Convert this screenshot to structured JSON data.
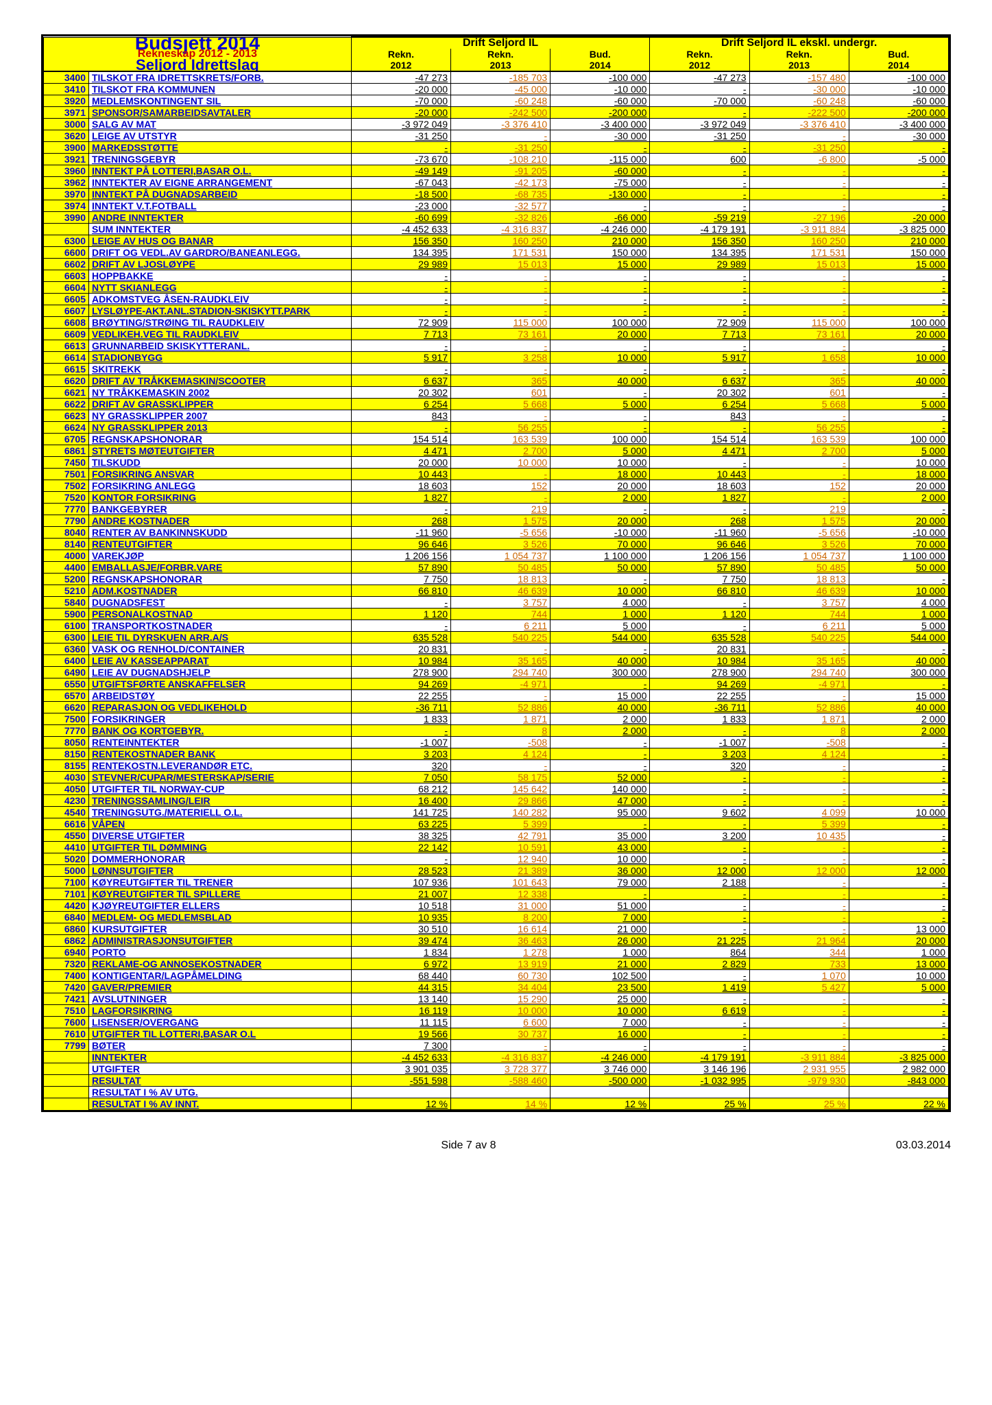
{
  "title": "Budsjett 2014",
  "subtitle": "Rekneskap 2012 - 2013",
  "org": "Seljord Idrettslag",
  "groups": [
    {
      "label": "Drift Seljord IL",
      "cols": [
        {
          "k": "a",
          "label": "Rekn.",
          "year": "2012"
        },
        {
          "k": "b",
          "label": "Rekn.",
          "year": "2013"
        },
        {
          "k": "c",
          "label": "Bud.",
          "year": "2014"
        }
      ]
    },
    {
      "label": "Drift Seljord IL ekskl. undergr.",
      "cols": [
        {
          "k": "d",
          "label": "Rekn.",
          "year": "2012"
        },
        {
          "k": "e",
          "label": "Rekn.",
          "year": "2013"
        },
        {
          "k": "f",
          "label": "Bud.",
          "year": "2014"
        }
      ]
    }
  ],
  "rows": [
    {
      "code": "3400",
      "desc": "TILSKOT FRA IDRETTSKRETS/FORB.",
      "a": "-47 273",
      "b": "-185 703",
      "c": "-100 000",
      "d": "-47 273",
      "e": "-157 480",
      "f": "-100 000"
    },
    {
      "code": "3410",
      "desc": "TILSKOT FRA KOMMUNEN",
      "a": "-20 000",
      "b": "-45 000",
      "c": "-10 000",
      "d": "-",
      "e": "-30 000",
      "f": "-10 000"
    },
    {
      "code": "3920",
      "desc": "MEDLEMSKONTINGENT SIL",
      "a": "-70 000",
      "b": "-60 248",
      "c": "-60 000",
      "d": "-70 000",
      "e": "-60 248",
      "f": "-60 000"
    },
    {
      "code": "3971",
      "desc": "SPONSOR/SAMARBEIDSAVTALER",
      "a": "-20 000",
      "b": "-242 500",
      "c": "-200 000",
      "d": "-",
      "e": "-222 500",
      "f": "-200 000",
      "hl": true
    },
    {
      "code": "3000",
      "desc": "SALG AV MAT",
      "a": "-3 972 049",
      "b": "-3 376 410",
      "c": "-3 400 000",
      "d": "-3 972 049",
      "e": "-3 376 410",
      "f": "-3 400 000"
    },
    {
      "code": "3620",
      "desc": "LEIGE AV UTSTYR",
      "a": "-31 250",
      "b": "-",
      "c": "-30 000",
      "d": "-31 250",
      "e": "-",
      "f": "-30 000"
    },
    {
      "code": "3900",
      "desc": "MARKEDSSTØTTE",
      "a": "-",
      "b": "-31 250",
      "c": "-",
      "d": "-",
      "e": "-31 250",
      "f": "-",
      "hl": true
    },
    {
      "code": "3921",
      "desc": "TRENINGSGEBYR",
      "a": "-73 670",
      "b": "-108 210",
      "c": "-115 000",
      "d": "600",
      "e": "-6 800",
      "f": "-5 000"
    },
    {
      "code": "3960",
      "desc": "INNTEKT PÅ LOTTERI,BASAR O.L.",
      "a": "-49 149",
      "b": "-91 205",
      "c": "-60 000",
      "d": "-",
      "e": "-",
      "f": "-",
      "hl": true
    },
    {
      "code": "3962",
      "desc": "INNTEKTER AV EIGNE ARRANGEMENT",
      "a": "-67 043",
      "b": "-42 173",
      "c": "-75 000",
      "d": "-",
      "e": "-",
      "f": "-"
    },
    {
      "code": "3970",
      "desc": "INNTEKT PÅ DUGNADSARBEID",
      "a": "-18 500",
      "b": "-68 735",
      "c": "-130 000",
      "d": "-",
      "e": "-",
      "f": "-",
      "hl": true
    },
    {
      "code": "3974",
      "desc": "INNTEKT V.T.FOTBALL",
      "a": "-23 000",
      "b": "-32 577",
      "c": "-",
      "d": "-",
      "e": "-",
      "f": "-"
    },
    {
      "code": "3990",
      "desc": "ANDRE INNTEKTER",
      "a": "-60 699",
      "b": "-32 826",
      "c": "-66 000",
      "d": "-59 219",
      "e": "-27 196",
      "f": "-20 000",
      "hl": true
    },
    {
      "code": "",
      "desc": "SUM INNTEKTER",
      "a": "-4 452 633",
      "b": "-4 316 837",
      "c": "-4 246 000",
      "d": "-4 179 191",
      "e": "-3 911 884",
      "f": "-3 825 000"
    },
    {
      "code": "6300",
      "desc": "LEIGE AV HUS OG BANAR",
      "a": "156 350",
      "b": "160 250",
      "c": "210 000",
      "d": "156 350",
      "e": "160 250",
      "f": "210 000",
      "hl": true
    },
    {
      "code": "6600",
      "desc": "DRIFT OG VEDL.AV GARDRO/BANEANLEGG.",
      "a": "134 395",
      "b": "171 531",
      "c": "150 000",
      "d": "134 395",
      "e": "171 531",
      "f": "150 000"
    },
    {
      "code": "6602",
      "desc": "DRIFT AV LJOSLØYPE",
      "a": "29 989",
      "b": "15 013",
      "c": "15 000",
      "d": "29 989",
      "e": "15 013",
      "f": "15 000",
      "hl": true
    },
    {
      "code": "6603",
      "desc": "HOPPBAKKE",
      "a": "-",
      "b": "-",
      "c": "-",
      "d": "-",
      "e": "-",
      "f": "-"
    },
    {
      "code": "6604",
      "desc": "NYTT SKIANLEGG",
      "a": "-",
      "b": "-",
      "c": "-",
      "d": "-",
      "e": "-",
      "f": "-",
      "hl": true
    },
    {
      "code": "6605",
      "desc": "ADKOMSTVEG ÅSEN-RAUDKLEIV",
      "a": "-",
      "b": "-",
      "c": "-",
      "d": "-",
      "e": "-",
      "f": "-"
    },
    {
      "code": "6607",
      "desc": "LYSLØYPE-AKT.ANL.STADION-SKISKYTT.PARK",
      "a": "-",
      "b": "-",
      "c": "-",
      "d": "-",
      "e": "-",
      "f": "-",
      "hl": true
    },
    {
      "code": "6608",
      "desc": "BRØYTING/STRØING TIL RAUDKLEIV",
      "a": "72 909",
      "b": "115 000",
      "c": "100 000",
      "d": "72 909",
      "e": "115 000",
      "f": "100 000"
    },
    {
      "code": "6609",
      "desc": "VEDLIKEH.VEG TIL RAUDKLEIV",
      "a": "7 713",
      "b": "73 161",
      "c": "20 000",
      "d": "7 713",
      "e": "73 161",
      "f": "20 000",
      "hl": true
    },
    {
      "code": "6613",
      "desc": "GRUNNARBEID SKISKYTTERANL.",
      "a": "-",
      "b": "-",
      "c": "-",
      "d": "-",
      "e": "-",
      "f": "-"
    },
    {
      "code": "6614",
      "desc": "STADIONBYGG",
      "a": "5 917",
      "b": "3 258",
      "c": "10 000",
      "d": "5 917",
      "e": "1 658",
      "f": "10 000",
      "hl": true
    },
    {
      "code": "6615",
      "desc": "SKITREKK",
      "a": "-",
      "b": "-",
      "c": "-",
      "d": "-",
      "e": "-",
      "f": "-"
    },
    {
      "code": "6620",
      "desc": "DRIFT AV TRÅKKEMASKIN/SCOOTER",
      "a": "6 637",
      "b": "365",
      "c": "40 000",
      "d": "6 637",
      "e": "365",
      "f": "40 000",
      "hl": true
    },
    {
      "code": "6621",
      "desc": "NY TRÅKKEMASKIN 2002",
      "a": "20 302",
      "b": "601",
      "c": "-",
      "d": "20 302",
      "e": "601",
      "f": "-"
    },
    {
      "code": "6622",
      "desc": "DRIFT AV GRASSKLIPPER",
      "a": "6 254",
      "b": "5 668",
      "c": "5 000",
      "d": "6 254",
      "e": "5 668",
      "f": "5 000",
      "hl": true
    },
    {
      "code": "6623",
      "desc": "NY GRASSKLIPPER 2007",
      "a": "843",
      "b": "-",
      "c": "-",
      "d": "843",
      "e": "-",
      "f": "-"
    },
    {
      "code": "6624",
      "desc": "NY GRASSKLIPPER 2013",
      "a": "-",
      "b": "56 255",
      "c": "-",
      "d": "-",
      "e": "56 255",
      "f": "-",
      "hl": true
    },
    {
      "code": "6705",
      "desc": "REGNSKAPSHONORAR",
      "a": "154 514",
      "b": "163 539",
      "c": "100 000",
      "d": "154 514",
      "e": "163 539",
      "f": "100 000"
    },
    {
      "code": "6861",
      "desc": "STYRETS MØTEUTGIFTER",
      "a": "4 471",
      "b": "2 700",
      "c": "5 000",
      "d": "4 471",
      "e": "2 700",
      "f": "5 000",
      "hl": true
    },
    {
      "code": "7450",
      "desc": "TILSKUDD",
      "a": "20 000",
      "b": "10 000",
      "c": "10 000",
      "d": "-",
      "e": "-",
      "f": "10 000"
    },
    {
      "code": "7501",
      "desc": "FORSIKRING ANSVAR",
      "a": "10 443",
      "b": "-",
      "c": "18 000",
      "d": "10 443",
      "e": "-",
      "f": "18 000",
      "hl": true
    },
    {
      "code": "7502",
      "desc": "FORSIKRING ANLEGG",
      "a": "18 603",
      "b": "152",
      "c": "20 000",
      "d": "18 603",
      "e": "152",
      "f": "20 000"
    },
    {
      "code": "7520",
      "desc": "KONTOR FORSIKRING",
      "a": "1 827",
      "b": "-",
      "c": "2 000",
      "d": "1 827",
      "e": "-",
      "f": "2 000",
      "hl": true
    },
    {
      "code": "7770",
      "desc": "BANKGEBYRER",
      "a": "-",
      "b": "219",
      "c": "-",
      "d": "-",
      "e": "219",
      "f": "-"
    },
    {
      "code": "7790",
      "desc": "ANDRE KOSTNADER",
      "a": "268",
      "b": "1 575",
      "c": "20 000",
      "d": "268",
      "e": "1 575",
      "f": "20 000",
      "hl": true
    },
    {
      "code": "8040",
      "desc": "RENTER AV BANKINNSKUDD",
      "a": "-11 960",
      "b": "-5 656",
      "c": "-10 000",
      "d": "-11 960",
      "e": "-5 656",
      "f": "-10 000"
    },
    {
      "code": "8140",
      "desc": "RENTEUTGIFTER",
      "a": "96 646",
      "b": "3 526",
      "c": "70 000",
      "d": "96 646",
      "e": "3 526",
      "f": "70 000",
      "hl": true
    },
    {
      "code": "4000",
      "desc": "VAREKJØP",
      "a": "1 206 156",
      "b": "1 054 737",
      "c": "1 100 000",
      "d": "1 206 156",
      "e": "1 054 737",
      "f": "1 100 000"
    },
    {
      "code": "4400",
      "desc": "EMBALLASJE/FORBR.VARE",
      "a": "57 890",
      "b": "50 485",
      "c": "50 000",
      "d": "57 890",
      "e": "50 485",
      "f": "50 000",
      "hl": true
    },
    {
      "code": "5200",
      "desc": "REGNSKAPSHONORAR",
      "a": "7 750",
      "b": "18 813",
      "c": "-",
      "d": "7 750",
      "e": "18 813",
      "f": "-"
    },
    {
      "code": "5210",
      "desc": "ADM.KOSTNADER",
      "a": "66 810",
      "b": "46 639",
      "c": "10 000",
      "d": "66 810",
      "e": "46 639",
      "f": "10 000",
      "hl": true
    },
    {
      "code": "5840",
      "desc": "DUGNADSFEST",
      "a": "-",
      "b": "3 757",
      "c": "4 000",
      "d": "-",
      "e": "3 757",
      "f": "4 000"
    },
    {
      "code": "5900",
      "desc": "PERSONALKOSTNAD",
      "a": "1 120",
      "b": "744",
      "c": "1 000",
      "d": "1 120",
      "e": "744",
      "f": "1 000",
      "hl": true
    },
    {
      "code": "6100",
      "desc": "TRANSPORTKOSTNADER",
      "a": "-",
      "b": "6 211",
      "c": "5 000",
      "d": "-",
      "e": "6 211",
      "f": "5 000"
    },
    {
      "code": "6300",
      "desc": "LEIE TIL DYRSKUEN ARR.A/S",
      "a": "635 528",
      "b": "540 225",
      "c": "544 000",
      "d": "635 528",
      "e": "540 225",
      "f": "544 000",
      "hl": true
    },
    {
      "code": "6360",
      "desc": "VASK OG RENHOLD/CONTAINER",
      "a": "20 831",
      "b": "-",
      "c": "-",
      "d": "20 831",
      "e": "-",
      "f": "-"
    },
    {
      "code": "6400",
      "desc": "LEIE AV KASSEAPPARAT",
      "a": "10 984",
      "b": "35 165",
      "c": "40 000",
      "d": "10 984",
      "e": "35 165",
      "f": "40 000",
      "hl": true
    },
    {
      "code": "6490",
      "desc": "LEIE AV DUGNADSHJELP",
      "a": "278 900",
      "b": "294 740",
      "c": "300 000",
      "d": "278 900",
      "e": "294 740",
      "f": "300 000"
    },
    {
      "code": "6550",
      "desc": "UTGIFTSFØRTE ANSKAFFELSER",
      "a": "94 269",
      "b": "-4 971",
      "c": "-",
      "d": "94 269",
      "e": "-4 971",
      "f": "-",
      "hl": true
    },
    {
      "code": "6570",
      "desc": "ARBEIDSTØY",
      "a": "22 255",
      "b": "-",
      "c": "15 000",
      "d": "22 255",
      "e": "-",
      "f": "15 000"
    },
    {
      "code": "6620",
      "desc": "REPARASJON OG VEDLIKEHOLD",
      "a": "-36 711",
      "b": "52 886",
      "c": "40 000",
      "d": "-36 711",
      "e": "52 886",
      "f": "40 000",
      "hl": true
    },
    {
      "code": "7500",
      "desc": "FORSIKRINGER",
      "a": "1 833",
      "b": "1 871",
      "c": "2 000",
      "d": "1 833",
      "e": "1 871",
      "f": "2 000"
    },
    {
      "code": "7770",
      "desc": "BANK OG KORTGEBYR.",
      "a": "-",
      "b": "8",
      "c": "2 000",
      "d": "-",
      "e": "8",
      "f": "2 000",
      "hl": true
    },
    {
      "code": "8050",
      "desc": "RENTEINNTEKTER",
      "a": "-1 007",
      "b": "-508",
      "c": "-",
      "d": "-1 007",
      "e": "-508",
      "f": "-"
    },
    {
      "code": "8150",
      "desc": "RENTEKOSTNADER BANK",
      "a": "3 203",
      "b": "4 124",
      "c": "-",
      "d": "3 203",
      "e": "4 124",
      "f": "-",
      "hl": true
    },
    {
      "code": "8155",
      "desc": "RENTEKOSTN.LEVERANDØR ETC.",
      "a": "320",
      "b": "-",
      "c": "-",
      "d": "320",
      "e": "-",
      "f": "-"
    },
    {
      "code": "4030",
      "desc": "STEVNER/CUPAR/MESTERSKAP/SERIE",
      "a": "7 050",
      "b": "58 175",
      "c": "52 000",
      "d": "-",
      "e": "-",
      "f": "-",
      "hl": true
    },
    {
      "code": "4050",
      "desc": "UTGIFTER TIL NORWAY-CUP",
      "a": "68 212",
      "b": "145 642",
      "c": "140 000",
      "d": "-",
      "e": "-",
      "f": "-"
    },
    {
      "code": "4230",
      "desc": "TRENINGSSAMLING/LEIR",
      "a": "16 400",
      "b": "29 866",
      "c": "47 000",
      "d": "-",
      "e": "-",
      "f": "-",
      "hl": true
    },
    {
      "code": "4540",
      "desc": "TRENINGSUTG./MATERIELL O.L.",
      "a": "141 725",
      "b": "140 282",
      "c": "95 000",
      "d": "9 602",
      "e": "4 099",
      "f": "10 000"
    },
    {
      "code": "6616",
      "desc": "VÅPEN",
      "a": "63 225",
      "b": "5 399",
      "c": "-",
      "d": "-",
      "e": "5 399",
      "f": "-",
      "hl": true
    },
    {
      "code": "4550",
      "desc": "DIVERSE UTGIFTER",
      "a": "38 325",
      "b": "42 791",
      "c": "35 000",
      "d": "3 200",
      "e": "10 435",
      "f": "-"
    },
    {
      "code": "4410",
      "desc": "UTGIFTER TIL DØMMING",
      "a": "22 142",
      "b": "10 591",
      "c": "43 000",
      "d": "-",
      "e": "-",
      "f": "-",
      "hl": true
    },
    {
      "code": "5020",
      "desc": "DOMMERHONORAR",
      "a": "-",
      "b": "12 940",
      "c": "10 000",
      "d": "-",
      "e": "-",
      "f": "-"
    },
    {
      "code": "5000",
      "desc": "LØNNSUTGIFTER",
      "a": "28 523",
      "b": "21 389",
      "c": "36 000",
      "d": "12 000",
      "e": "12 000",
      "f": "12 000",
      "hl": true
    },
    {
      "code": "7100",
      "desc": "KØYREUTGIFTER TIL TRENER",
      "a": "107 936",
      "b": "101 643",
      "c": "79 000",
      "d": "2 188",
      "e": "-",
      "f": "-"
    },
    {
      "code": "7101",
      "desc": "KØYREUTGIFTER TIL SPILLERE",
      "a": "21 007",
      "b": "12 338",
      "c": "-",
      "d": "-",
      "e": "-",
      "f": "-",
      "hl": true
    },
    {
      "code": "4420",
      "desc": "KJØYREUTGIFTER ELLERS",
      "a": "10 518",
      "b": "31 000",
      "c": "51 000",
      "d": "-",
      "e": "-",
      "f": "-"
    },
    {
      "code": "6840",
      "desc": "MEDLEM- OG MEDLEMSBLAD",
      "a": "10 935",
      "b": "8 200",
      "c": "7 000",
      "d": "-",
      "e": "-",
      "f": "-",
      "hl": true
    },
    {
      "code": "6860",
      "desc": "KURSUTGIFTER",
      "a": "30 510",
      "b": "16 614",
      "c": "21 000",
      "d": "-",
      "e": "-",
      "f": "13 000"
    },
    {
      "code": "6862",
      "desc": "ADMINISTRASJONSUTGIFTER",
      "a": "39 474",
      "b": "36 463",
      "c": "26 000",
      "d": "21 225",
      "e": "21 964",
      "f": "20 000",
      "hl": true
    },
    {
      "code": "6940",
      "desc": "PORTO",
      "a": "1 834",
      "b": "1 278",
      "c": "1 000",
      "d": "864",
      "e": "344",
      "f": "1 000"
    },
    {
      "code": "7320",
      "desc": "REKLAME-OG ANNOSEKOSTNADER",
      "a": "6 972",
      "b": "13 919",
      "c": "21 000",
      "d": "2 829",
      "e": "733",
      "f": "13 000",
      "hl": true
    },
    {
      "code": "7400",
      "desc": "KONTIGENTAR/LAGPÅMELDING",
      "a": "68 440",
      "b": "60 730",
      "c": "102 500",
      "d": "-",
      "e": "1 070",
      "f": "10 000"
    },
    {
      "code": "7420",
      "desc": "GAVER/PREMIER",
      "a": "44 315",
      "b": "34 404",
      "c": "23 500",
      "d": "1 419",
      "e": "5 427",
      "f": "5 000",
      "hl": true
    },
    {
      "code": "7421",
      "desc": "AVSLUTNINGER",
      "a": "13 140",
      "b": "15 290",
      "c": "25 000",
      "d": "-",
      "e": "-",
      "f": "-"
    },
    {
      "code": "7510",
      "desc": "LAGFORSIKRING",
      "a": "16 119",
      "b": "10 000",
      "c": "10 000",
      "d": "6 619",
      "e": "-",
      "f": "-",
      "hl": true
    },
    {
      "code": "7600",
      "desc": "LISENSER/OVERGANG",
      "a": "11 115",
      "b": "6 600",
      "c": "7 000",
      "d": "-",
      "e": "-",
      "f": "-"
    },
    {
      "code": "7610",
      "desc": "UTGIFTER TIL LOTTERI,BASAR O.L",
      "a": "19 566",
      "b": "30 737",
      "c": "16 000",
      "d": "-",
      "e": "-",
      "f": "-",
      "hl": true
    },
    {
      "code": "7799",
      "desc": "BØTER",
      "a": "7 300",
      "b": "-",
      "c": "-",
      "d": "-",
      "e": "-",
      "f": "-"
    },
    {
      "code": "",
      "desc": "INNTEKTER",
      "a": "-4 452 633",
      "b": "-4 316 837",
      "c": "-4 246 000",
      "d": "-4 179 191",
      "e": "-3 911 884",
      "f": "-3 825 000",
      "hl": true
    },
    {
      "code": "",
      "desc": "UTGIFTER",
      "a": "3 901 035",
      "b": "3 728 377",
      "c": "3 746 000",
      "d": "3 146 196",
      "e": "2 931 955",
      "f": "2 982 000"
    },
    {
      "code": "",
      "desc": "RESULTAT",
      "a": "-551 598",
      "b": "-588 460",
      "c": "-500 000",
      "d": "-1 032 995",
      "e": "-979 930",
      "f": "-843 000",
      "hl": true
    },
    {
      "code": "",
      "desc": "RESULTAT I % AV UTG.",
      "a": "",
      "b": "",
      "c": "",
      "d": "",
      "e": "",
      "f": ""
    },
    {
      "code": "",
      "desc": "RESULTAT I % AV INNT.",
      "a": "12 %",
      "b": "14 %",
      "c": "12 %",
      "d": "25 %",
      "e": "25 %",
      "f": "22 %",
      "hl": true
    }
  ],
  "colors": {
    "yellow": "#ffff00",
    "blue": "#0000cc",
    "red": "#cc0000",
    "orange": "#cc6600"
  },
  "footer_page": "Side 7 av 8",
  "footer_date": "03.03.2014"
}
